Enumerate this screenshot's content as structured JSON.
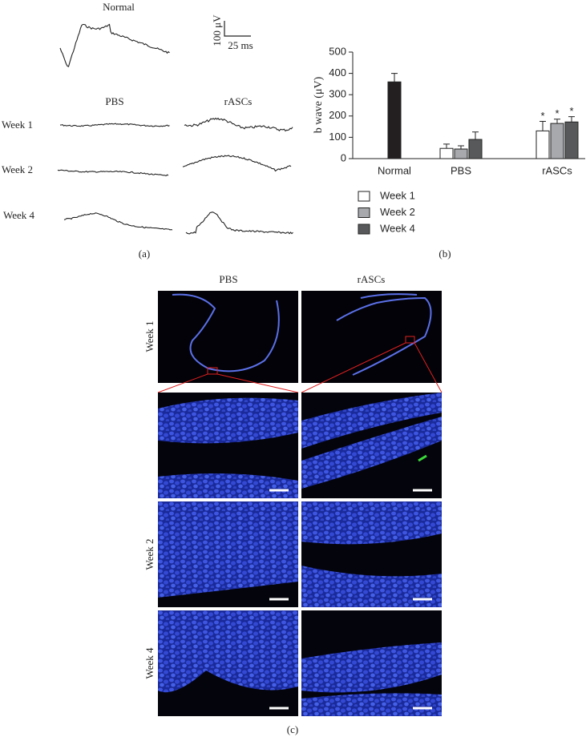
{
  "panel_a": {
    "title": "Normal",
    "scale_y": "100 μV",
    "scale_x": "25 ms",
    "columns": [
      "PBS",
      "rASCs"
    ],
    "rows": [
      "Week 1",
      "Week 2",
      "Week 4"
    ],
    "label": "(a)"
  },
  "chart_data": {
    "type": "bar",
    "categories": [
      "Normal",
      "PBS",
      "rASCs"
    ],
    "ylabel": "b wave (μV)",
    "ylim": [
      0,
      500
    ],
    "yticks": [
      0,
      100,
      200,
      300,
      400,
      500
    ],
    "series": [
      {
        "color": "#231f20",
        "values": [
          360,
          null,
          null
        ],
        "errors": [
          40,
          null,
          null
        ]
      },
      {
        "name": "Week 1",
        "color": "#ffffff",
        "values": [
          null,
          48,
          130
        ],
        "errors": [
          null,
          20,
          45
        ],
        "markers": [
          null,
          null,
          "*"
        ]
      },
      {
        "name": "Week 2",
        "color": "#a7a9ac",
        "values": [
          null,
          45,
          165
        ],
        "errors": [
          null,
          15,
          20
        ],
        "markers": [
          null,
          null,
          "*"
        ]
      },
      {
        "name": "Week 4",
        "color": "#58595b",
        "values": [
          null,
          90,
          172
        ],
        "errors": [
          null,
          35,
          25
        ],
        "markers": [
          null,
          null,
          "*"
        ]
      }
    ],
    "panel_label": "(b)"
  },
  "panel_c": {
    "columns": [
      "PBS",
      "rASCs"
    ],
    "rows": [
      "Week 1",
      "Week 2",
      "Week 4"
    ],
    "label": "(c)"
  }
}
